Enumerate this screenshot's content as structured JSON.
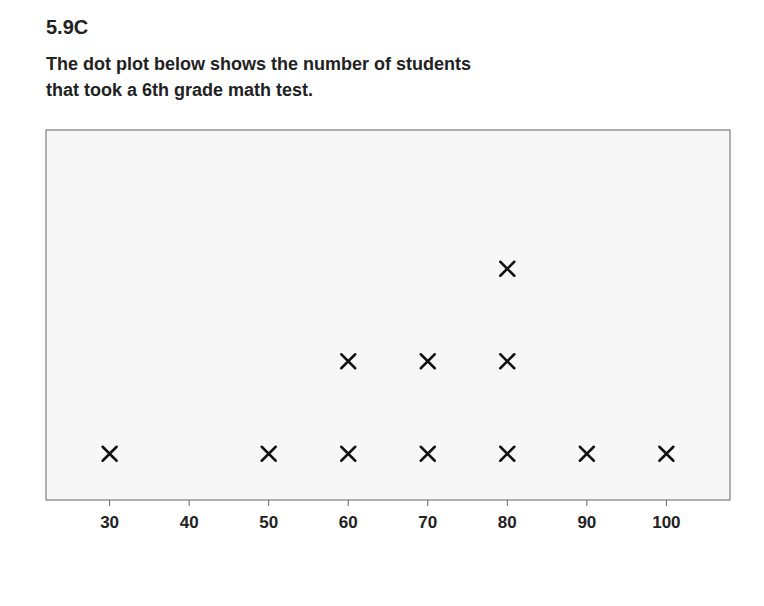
{
  "chart_data": {
    "type": "dot",
    "title": "5.9C",
    "subtitle": [
      "The dot plot below shows the number of students",
      "that took a 6th grade math test."
    ],
    "x": [
      30,
      40,
      50,
      60,
      70,
      80,
      90,
      100
    ],
    "values": [
      1,
      0,
      1,
      2,
      2,
      3,
      1,
      1
    ],
    "xlim": [
      22,
      108
    ],
    "xticks": [
      30,
      40,
      50,
      60,
      70,
      80,
      90,
      100
    ],
    "ylim": [
      0,
      4
    ],
    "marker": "x",
    "color": "#111111",
    "grid": false,
    "tick_labels": "x"
  }
}
